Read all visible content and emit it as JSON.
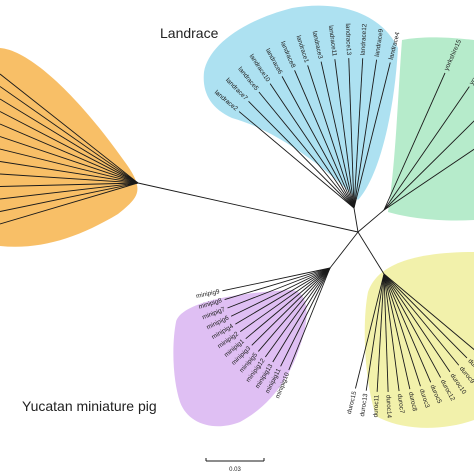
{
  "colors": {
    "branch": "#1a1a1a",
    "clade_left": "#f7b44c",
    "clade_landrace": "#9fdcef",
    "clade_yorkshire": "#a9e8c2",
    "clade_minipig": "#d9b4f1",
    "clade_duroc": "#f0ef9c"
  },
  "groups": {
    "landrace": {
      "label": "Landrace",
      "tips": [
        "landrace4",
        "landrace9",
        "landrace12",
        "landrace13",
        "landrace11",
        "landrace3",
        "landrace1",
        "landrace8",
        "landrace6",
        "landrace10",
        "landrace5",
        "landrace7",
        "landrace2"
      ]
    },
    "yorkshire": {
      "label": "",
      "tips": [
        "yorkshire15",
        "yorkshire14",
        "yorkshire12",
        "yorksh"
      ]
    },
    "minipig": {
      "label": "Yucatan miniature pig",
      "tips": [
        "minipig9",
        "minipig8",
        "minipig7",
        "minipig6",
        "minipig4",
        "minipig2",
        "minipig1",
        "minipig3",
        "minipig5",
        "minipig12",
        "minipig13",
        "minipig11",
        "minipig10"
      ]
    },
    "duroc": {
      "label": "",
      "tips": [
        "duroc15",
        "duroc13",
        "duroc11",
        "duroc14",
        "duroc7",
        "duroc8",
        "duroc3",
        "duroc5",
        "duroc12",
        "duroc10",
        "duroc9",
        "duroc4",
        "duroc2"
      ]
    }
  },
  "scale_bar": {
    "label": "0.03"
  }
}
